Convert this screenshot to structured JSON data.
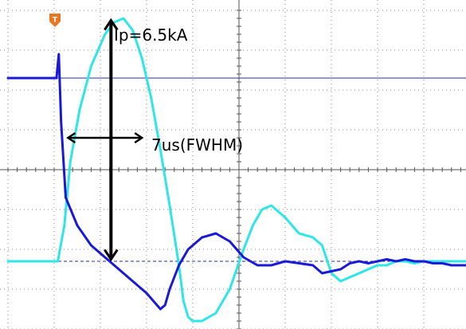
{
  "chart_data": {
    "type": "line",
    "title": "",
    "xlabel": "",
    "ylabel": "",
    "grid": true,
    "xlim": [
      0,
      10
    ],
    "ylim": [
      -4,
      4
    ],
    "trigger_marker": "T",
    "annotations": {
      "peak_current": "Ip=6.5kA",
      "pulse_width": "7us(FWHM)"
    },
    "series": [
      {
        "color": "#2ee6e6",
        "x": [
          0.0,
          1.08,
          1.22,
          1.35,
          1.55,
          1.8,
          2.1,
          2.3,
          2.5,
          2.7,
          2.9,
          3.1,
          3.3,
          3.5,
          3.7,
          3.8,
          3.9,
          4.0,
          4.2,
          4.5,
          4.8,
          5.1,
          5.3,
          5.5,
          5.7,
          6.0,
          6.3,
          6.6,
          6.8,
          7.0,
          7.2,
          7.4,
          7.6,
          7.8,
          8.0,
          8.2,
          8.4,
          8.6,
          8.8,
          9.0,
          9.2,
          9.4,
          9.6,
          10.0
        ],
        "y": [
          -2.3,
          -2.3,
          -1.4,
          0.2,
          1.5,
          2.6,
          3.4,
          3.7,
          3.8,
          3.5,
          2.8,
          1.8,
          0.5,
          -0.9,
          -2.4,
          -3.3,
          -3.7,
          -3.8,
          -3.8,
          -3.6,
          -3.0,
          -2.0,
          -1.4,
          -1.0,
          -0.9,
          -1.2,
          -1.6,
          -1.7,
          -1.9,
          -2.6,
          -2.8,
          -2.7,
          -2.6,
          -2.5,
          -2.4,
          -2.4,
          -2.3,
          -2.3,
          -2.35,
          -2.3,
          -2.3,
          -2.3,
          -2.3,
          -2.3
        ]
      },
      {
        "color": "#1a1ad6",
        "x": [
          0.0,
          1.05,
          1.1,
          1.15,
          1.25,
          1.5,
          1.8,
          2.1,
          2.4,
          2.7,
          3.0,
          3.3,
          3.4,
          3.5,
          3.7,
          3.9,
          4.2,
          4.5,
          4.8,
          5.1,
          5.4,
          5.7,
          6.0,
          6.3,
          6.6,
          6.8,
          7.0,
          7.2,
          7.4,
          7.6,
          7.8,
          8.0,
          8.2,
          8.4,
          8.6,
          8.8,
          9.0,
          9.2,
          9.4,
          9.6,
          10.0
        ],
        "y": [
          2.3,
          2.3,
          2.9,
          1.2,
          -0.7,
          -1.4,
          -1.9,
          -2.2,
          -2.5,
          -2.8,
          -3.1,
          -3.5,
          -3.4,
          -3.0,
          -2.4,
          -2.0,
          -1.7,
          -1.6,
          -1.8,
          -2.2,
          -2.4,
          -2.4,
          -2.3,
          -2.35,
          -2.4,
          -2.6,
          -2.55,
          -2.5,
          -2.35,
          -2.3,
          -2.35,
          -2.3,
          -2.25,
          -2.3,
          -2.25,
          -2.3,
          -2.3,
          -2.35,
          -2.35,
          -2.4,
          -2.4
        ]
      }
    ],
    "reference_lines": [
      {
        "color": "#2a2ab0",
        "y": 2.3,
        "style": "solid",
        "x_start": 1.08
      },
      {
        "color": "#2a2ab0",
        "y": -2.3,
        "style": "dashed",
        "x_start": 0
      }
    ],
    "markers": [
      {
        "kind": "peak_arrow",
        "x": 2.23,
        "y_from": -2.25,
        "y_to": 3.75
      },
      {
        "kind": "width_arrow",
        "y": 0.8,
        "x_from": 1.3,
        "x_to": 2.9
      }
    ]
  }
}
